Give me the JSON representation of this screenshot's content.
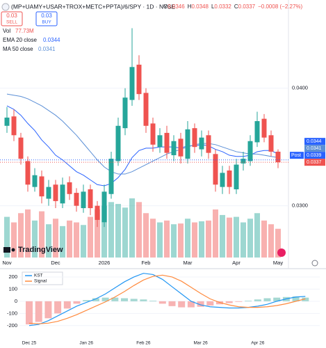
{
  "header": {
    "title": "(MP+UAMY+USAR+TROX+METC+PPTA)/6/SPY · 1D · NYSE",
    "ohlc_prefixes": [
      "O",
      "H",
      "L",
      "C"
    ],
    "change": "−0.0008 (−2.27%)",
    "sell_price": "0.03",
    "sell_label": "SELL",
    "buy_price": "0.03",
    "buy_label": "BUY",
    "volume_name": "Vol",
    "volume_label": "77.73M",
    "post_label": "Post",
    "post_price": 0.0339,
    "logo": "TradingView"
  },
  "chart_data": [
    {
      "type": "candlestick",
      "categories": [
        "Nov",
        null,
        null,
        null,
        null,
        null,
        null,
        "Dec",
        null,
        null,
        null,
        null,
        null,
        null,
        "2026",
        null,
        null,
        null,
        null,
        null,
        "Feb",
        null,
        null,
        null,
        null,
        null,
        "Mar",
        null,
        null,
        null,
        null,
        null,
        null,
        "Apr",
        null,
        null,
        null,
        null,
        null,
        "May"
      ],
      "open": [
        0.0368,
        0.0376,
        0.0358,
        0.0338,
        0.0316,
        0.0325,
        0.0306,
        0.0318,
        0.0302,
        0.032,
        0.0311,
        0.0298,
        0.0314,
        0.03,
        0.0286,
        0.031,
        0.0338,
        0.0366,
        0.039,
        0.042,
        0.0396,
        0.037,
        0.035,
        0.0362,
        0.0343,
        0.0357,
        0.034,
        0.0366,
        0.0348,
        0.036,
        0.0344,
        0.0316,
        0.033,
        0.0314,
        0.0336,
        0.0338,
        0.0354,
        0.0374,
        0.036,
        0.0346
      ],
      "high": [
        0.0384,
        0.0382,
        0.0362,
        0.0342,
        0.0332,
        0.033,
        0.0322,
        0.0322,
        0.0324,
        0.0325,
        0.0315,
        0.0318,
        0.0318,
        0.0304,
        0.0318,
        0.0346,
        0.0375,
        0.04,
        0.0451,
        0.0428,
        0.04,
        0.0375,
        0.0366,
        0.0368,
        0.036,
        0.0362,
        0.0372,
        0.037,
        0.0364,
        0.0364,
        0.0348,
        0.0334,
        0.0334,
        0.034,
        0.0346,
        0.036,
        0.038,
        0.0378,
        0.0364,
        0.0348
      ],
      "low": [
        0.0362,
        0.0355,
        0.0335,
        0.0312,
        0.0312,
        0.0302,
        0.03,
        0.0298,
        0.0298,
        0.0305,
        0.0295,
        0.0294,
        0.0292,
        0.0282,
        0.0282,
        0.0306,
        0.0334,
        0.036,
        0.0385,
        0.039,
        0.0362,
        0.0346,
        0.0345,
        0.034,
        0.0338,
        0.0336,
        0.0336,
        0.0345,
        0.0342,
        0.034,
        0.0312,
        0.031,
        0.031,
        0.031,
        0.033,
        0.0334,
        0.035,
        0.0354,
        0.0342,
        0.0332
      ],
      "close": [
        0.0375,
        0.036,
        0.034,
        0.0318,
        0.0326,
        0.0308,
        0.0316,
        0.0304,
        0.0318,
        0.031,
        0.03,
        0.0312,
        0.0298,
        0.0288,
        0.0312,
        0.034,
        0.0368,
        0.0392,
        0.0418,
        0.0395,
        0.0368,
        0.0352,
        0.036,
        0.0345,
        0.0355,
        0.0342,
        0.0365,
        0.035,
        0.0358,
        0.0345,
        0.0318,
        0.0328,
        0.0316,
        0.0335,
        0.034,
        0.0355,
        0.0372,
        0.0358,
        0.0346,
        0.0337
      ],
      "volume": [
        110,
        95,
        120,
        130,
        100,
        125,
        90,
        105,
        85,
        100,
        95,
        88,
        110,
        130,
        140,
        150,
        145,
        135,
        160,
        150,
        120,
        105,
        95,
        100,
        90,
        92,
        105,
        95,
        98,
        100,
        130,
        115,
        108,
        110,
        95,
        105,
        120,
        100,
        90,
        77.73
      ],
      "up_color": "#26a69a",
      "down_color": "#ef5350",
      "series": [
        {
          "name": "EMA 20 close",
          "color": "#2962ff",
          "values": [
            0.0385,
            0.0382,
            0.0377,
            0.037,
            0.0364,
            0.0356,
            0.035,
            0.0343,
            0.0339,
            0.0334,
            0.0329,
            0.0326,
            0.0322,
            0.0318,
            0.0317,
            0.0319,
            0.0324,
            0.0331,
            0.0341,
            0.0347,
            0.0349,
            0.0349,
            0.035,
            0.035,
            0.035,
            0.0349,
            0.0351,
            0.0351,
            0.0352,
            0.0351,
            0.0348,
            0.0346,
            0.0343,
            0.0342,
            0.0342,
            0.0343,
            0.0346,
            0.0347,
            0.0347,
            0.0344
          ]
        },
        {
          "name": "MA 50 close",
          "color": "#5b8fd6",
          "values": [
            0.0395,
            0.0394,
            0.0393,
            0.0391,
            0.0388,
            0.0385,
            0.0381,
            0.0377,
            0.0372,
            0.0366,
            0.036,
            0.0353,
            0.0346,
            0.0339,
            0.0333,
            0.0329,
            0.0327,
            0.0327,
            0.0329,
            0.0332,
            0.0335,
            0.0338,
            0.0341,
            0.0344,
            0.0346,
            0.0348,
            0.035,
            0.0352,
            0.0353,
            0.0353,
            0.0352,
            0.035,
            0.0348,
            0.0346,
            0.0345,
            0.0344,
            0.0344,
            0.0343,
            0.0342,
            0.0341
          ]
        }
      ],
      "ylim": [
        0.0256,
        0.0475
      ],
      "yticks": [
        {
          "value": 0.04,
          "label": "0.0400"
        },
        {
          "value": 0.03,
          "label": "0.0300"
        }
      ],
      "grid": true
    },
    {
      "type": "kst",
      "categories": [
        "Dec 25",
        null,
        null,
        null,
        null,
        null,
        "Jan 26",
        null,
        null,
        null,
        null,
        null,
        "Feb 26",
        null,
        null,
        null,
        null,
        null,
        "Mar 26",
        null,
        null,
        null,
        null,
        null,
        "Apr 26",
        null,
        null,
        null,
        null,
        null
      ],
      "series": [
        {
          "name": "KST",
          "color": "#2196f3",
          "values": [
            -200,
            -190,
            -160,
            -120,
            -80,
            -40,
            -10,
            20,
            60,
            110,
            160,
            200,
            230,
            220,
            180,
            120,
            60,
            0,
            -30,
            -45,
            -50,
            -55,
            -55,
            -50,
            -40,
            -25,
            0,
            20,
            35,
            40
          ]
        },
        {
          "name": "Signal",
          "color": "#ff8a3d",
          "values": [
            -180,
            -185,
            -180,
            -165,
            -140,
            -110,
            -75,
            -40,
            -5,
            35,
            80,
            130,
            175,
            205,
            215,
            200,
            165,
            115,
            65,
            20,
            -10,
            -30,
            -45,
            -50,
            -50,
            -45,
            -35,
            -20,
            0,
            20
          ]
        }
      ],
      "histogram": [
        -190,
        -170,
        -140,
        -100,
        -60,
        -20,
        10,
        25,
        30,
        30,
        25,
        20,
        15,
        5,
        -20,
        -40,
        -50,
        -50,
        -45,
        -35,
        -25,
        -15,
        -5,
        5,
        15,
        25,
        30,
        35,
        40,
        30
      ],
      "histogram_up_color": "#a5d8d2",
      "histogram_down_color": "#f7b3b3",
      "ylim": [
        -270,
        257
      ],
      "yticks": [
        200,
        100,
        0,
        -100,
        -200
      ],
      "grid": true
    }
  ]
}
